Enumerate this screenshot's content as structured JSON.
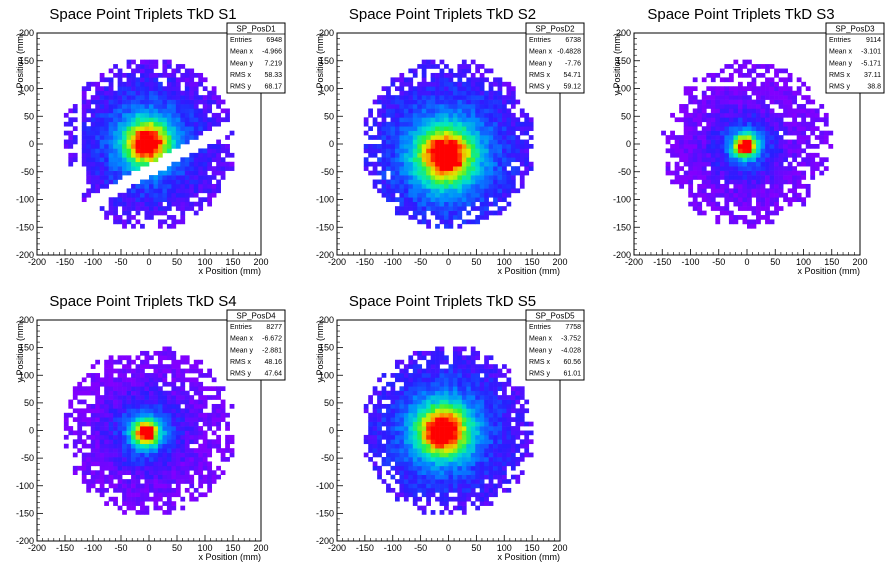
{
  "chart_data": [
    {
      "type": "heatmap",
      "title": "Space Point Triplets TkD S1",
      "xlabel": "x Position (mm)",
      "ylabel": "y Position (mm)",
      "xlim": [
        -200,
        200
      ],
      "ylim": [
        -200,
        200
      ],
      "xticks": [
        "-200",
        "-150",
        "-100",
        "-50",
        "0",
        "50",
        "100",
        "150",
        "200"
      ],
      "yticks": [
        "200",
        "150",
        "100",
        "50",
        "0",
        "-50",
        "-100",
        "-150",
        "-200"
      ],
      "stats": {
        "name": "SP_PosD1",
        "rows": [
          {
            "label": "Entries",
            "value": "6948"
          },
          {
            "label": "Mean x",
            "value": "-4.966"
          },
          {
            "label": "Mean y",
            "value": "7.219"
          },
          {
            "label": "RMS x",
            "value": "58.33"
          },
          {
            "label": "RMS y",
            "value": "68.17"
          }
        ]
      },
      "distribution": {
        "center_x": -3,
        "center_y": 2,
        "radius": 155,
        "core_sigma": 28,
        "gap": true,
        "side_strip_x": -140
      }
    },
    {
      "type": "heatmap",
      "title": "Space Point Triplets TkD S2",
      "xlabel": "x Position (mm)",
      "ylabel": "y Position (mm)",
      "xlim": [
        -200,
        200
      ],
      "ylim": [
        -200,
        200
      ],
      "xticks": [
        "-200",
        "-150",
        "-100",
        "-50",
        "0",
        "50",
        "100",
        "150",
        "200"
      ],
      "yticks": [
        "200",
        "150",
        "100",
        "50",
        "0",
        "-50",
        "-100",
        "-150",
        "-200"
      ],
      "stats": {
        "name": "SP_PosD2",
        "rows": [
          {
            "label": "Entries",
            "value": "6738"
          },
          {
            "label": "Mean x",
            "value": "-0.4828"
          },
          {
            "label": "Mean y",
            "value": "-7.76"
          },
          {
            "label": "RMS x",
            "value": "54.71"
          },
          {
            "label": "RMS y",
            "value": "59.12"
          }
        ]
      },
      "distribution": {
        "center_x": -5,
        "center_y": -20,
        "radius": 155,
        "core_sigma": 35,
        "gap": false
      }
    },
    {
      "type": "heatmap",
      "title": "Space Point Triplets TkD S3",
      "xlabel": "x Position (mm)",
      "ylabel": "y Position (mm)",
      "xlim": [
        -200,
        200
      ],
      "ylim": [
        -200,
        200
      ],
      "xticks": [
        "-200",
        "-150",
        "-100",
        "-50",
        "0",
        "50",
        "100",
        "150",
        "200"
      ],
      "yticks": [
        "200",
        "150",
        "100",
        "50",
        "0",
        "-50",
        "-100",
        "-150",
        "-200"
      ],
      "stats": {
        "name": "SP_PosD3",
        "rows": [
          {
            "label": "Entries",
            "value": "9114"
          },
          {
            "label": "Mean x",
            "value": "-3.101"
          },
          {
            "label": "Mean y",
            "value": "-5.171"
          },
          {
            "label": "RMS x",
            "value": "37.11"
          },
          {
            "label": "RMS y",
            "value": "38.8"
          }
        ]
      },
      "distribution": {
        "center_x": -3,
        "center_y": -3,
        "radius": 150,
        "core_sigma": 14,
        "gap": false
      }
    },
    {
      "type": "heatmap",
      "title": "Space Point Triplets TkD S4",
      "xlabel": "x Position (mm)",
      "ylabel": "y Position (mm)",
      "xlim": [
        -200,
        200
      ],
      "ylim": [
        -200,
        200
      ],
      "xticks": [
        "-200",
        "-150",
        "-100",
        "-50",
        "0",
        "50",
        "100",
        "150",
        "200"
      ],
      "yticks": [
        "200",
        "150",
        "100",
        "50",
        "0",
        "-50",
        "-100",
        "-150",
        "-200"
      ],
      "stats": {
        "name": "SP_PosD4",
        "rows": [
          {
            "label": "Entries",
            "value": "8277"
          },
          {
            "label": "Mean x",
            "value": "-6.672"
          },
          {
            "label": "Mean y",
            "value": "-2.881"
          },
          {
            "label": "RMS x",
            "value": "48.16"
          },
          {
            "label": "RMS y",
            "value": "47.64"
          }
        ]
      },
      "distribution": {
        "center_x": -5,
        "center_y": -3,
        "radius": 155,
        "core_sigma": 16,
        "gap": false
      }
    },
    {
      "type": "heatmap",
      "title": "Space Point Triplets TkD S5",
      "xlabel": "x Position (mm)",
      "ylabel": "y Position (mm)",
      "xlim": [
        -200,
        200
      ],
      "ylim": [
        -200,
        200
      ],
      "xticks": [
        "-200",
        "-150",
        "-100",
        "-50",
        "0",
        "50",
        "100",
        "150",
        "200"
      ],
      "yticks": [
        "200",
        "150",
        "100",
        "50",
        "0",
        "-50",
        "-100",
        "-150",
        "-200"
      ],
      "stats": {
        "name": "SP_PosD5",
        "rows": [
          {
            "label": "Entries",
            "value": "7758"
          },
          {
            "label": "Mean x",
            "value": "-3.752"
          },
          {
            "label": "Mean y",
            "value": "-4.028"
          },
          {
            "label": "RMS x",
            "value": "60.56"
          },
          {
            "label": "RMS y",
            "value": "61.01"
          }
        ]
      },
      "distribution": {
        "center_x": -10,
        "center_y": 0,
        "radius": 155,
        "core_sigma": 32,
        "gap": false
      }
    }
  ]
}
